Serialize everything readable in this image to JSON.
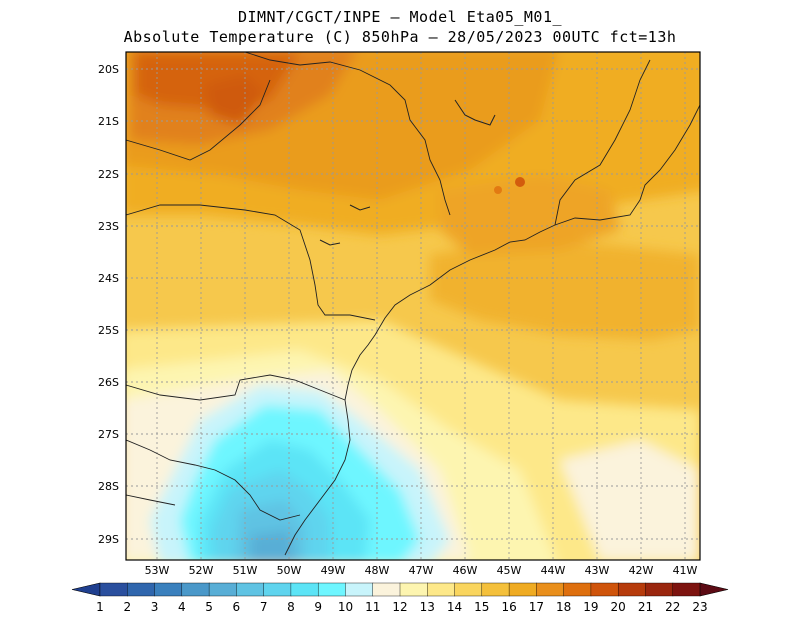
{
  "header": {
    "line1": "DIMNT/CGCT/INPE —  Model Eta05_M01_",
    "line2": "Absolute Temperature (C) 850hPa —  28/05/2023 00UTC fct=13h"
  },
  "axes": {
    "lat_labels": [
      "20S",
      "21S",
      "22S",
      "23S",
      "24S",
      "25S",
      "26S",
      "27S",
      "28S",
      "29S"
    ],
    "lon_labels": [
      "53W",
      "52W",
      "51W",
      "50W",
      "49W",
      "48W",
      "47W",
      "46W",
      "45W",
      "44W",
      "43W",
      "42W",
      "41W"
    ]
  },
  "colorbar": {
    "labels": [
      "1",
      "2",
      "3",
      "4",
      "5",
      "6",
      "7",
      "8",
      "9",
      "10",
      "11",
      "12",
      "13",
      "14",
      "15",
      "16",
      "17",
      "18",
      "19",
      "20",
      "21",
      "22",
      "23"
    ],
    "colors": [
      "#2a4f9e",
      "#2f66ad",
      "#3a80bd",
      "#4a98c9",
      "#58aed6",
      "#5fc3e3",
      "#5fd4ee",
      "#5ce4f6",
      "#6ef6ff",
      "#c8f4fb",
      "#fbf3dc",
      "#fdf5b0",
      "#fde889",
      "#f9d55e",
      "#f4c03b",
      "#efab22",
      "#e98f1c",
      "#de6f0e",
      "#cf540b",
      "#b63b0c",
      "#9a260e",
      "#7d130f"
    ],
    "left_arrow_color": "#1f3f8f",
    "right_arrow_color": "#5c0b14"
  }
}
